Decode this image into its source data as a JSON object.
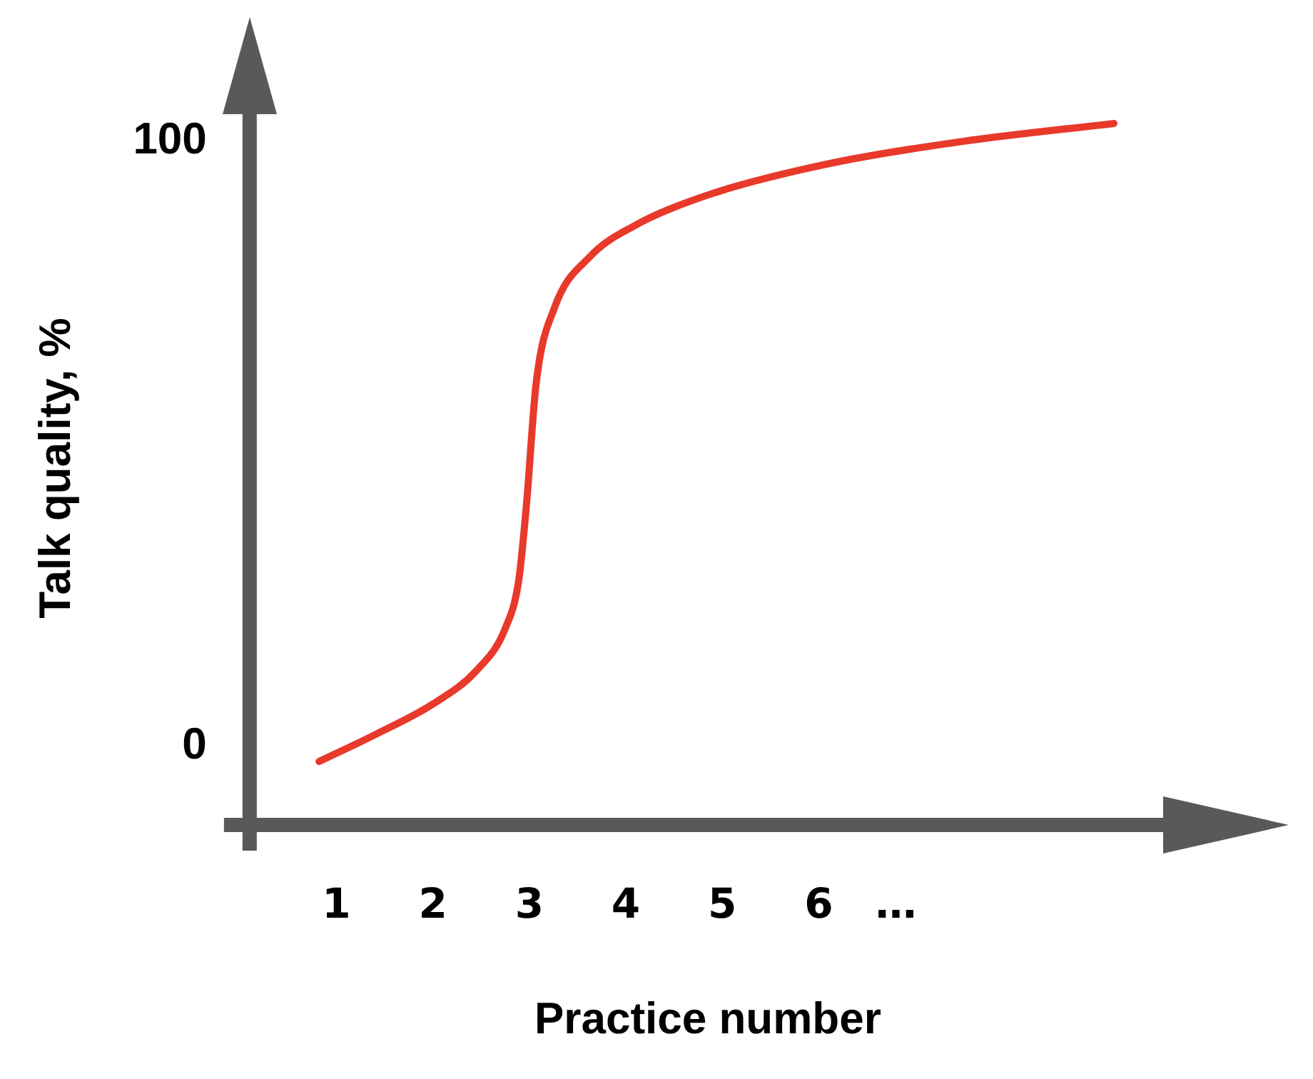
{
  "chart_data": {
    "type": "line",
    "xlabel": "Practice number",
    "ylabel": "Talk quality, %",
    "x": [
      0.82,
      1.41,
      2.0,
      2.45,
      2.75,
      2.89,
      2.97,
      3.07,
      3.26,
      3.63,
      4.08,
      4.82,
      6.0,
      7.48,
      9.06
    ],
    "series": [
      {
        "color": "#e8392a",
        "values": [
          -2.5,
          2,
          7,
          12.5,
          19.5,
          27.5,
          40,
          60,
          72.5,
          81,
          86,
          91,
          96,
          100,
          103
        ]
      }
    ],
    "xlim": [
      0.1,
      9.6
    ],
    "ylim": [
      -13,
      105
    ],
    "xticks": [
      1,
      2,
      3,
      4,
      5,
      6,
      {
        "value": 6.8,
        "label": "…"
      }
    ],
    "yticks": [
      0,
      100
    ],
    "grid": false,
    "legend": false,
    "marker": "none",
    "line_style": "solid"
  }
}
